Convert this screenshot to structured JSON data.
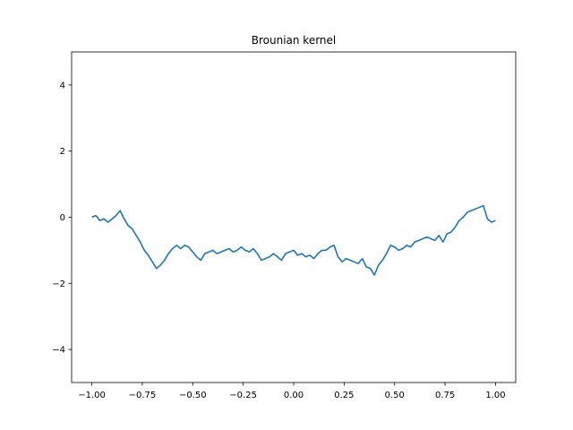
{
  "chart_data": {
    "type": "line",
    "title": "Brounian kernel",
    "xlabel": "",
    "ylabel": "",
    "xlim": [
      -1.1,
      1.1
    ],
    "ylim": [
      -5,
      5
    ],
    "xticks": [
      -1.0,
      -0.75,
      -0.5,
      -0.25,
      0.0,
      0.25,
      0.5,
      0.75,
      1.0
    ],
    "xtick_labels": [
      "−1.00",
      "−0.75",
      "−0.50",
      "−0.25",
      "0.00",
      "0.25",
      "0.50",
      "0.75",
      "1.00"
    ],
    "yticks": [
      -4,
      -2,
      0,
      2,
      4
    ],
    "ytick_labels": [
      "−4",
      "−2",
      "0",
      "2",
      "4"
    ],
    "grid": false,
    "series": [
      {
        "color": "#1f77b4",
        "x": [
          -1.0,
          -0.98,
          -0.96,
          -0.94,
          -0.92,
          -0.9,
          -0.88,
          -0.86,
          -0.84,
          -0.82,
          -0.8,
          -0.78,
          -0.76,
          -0.74,
          -0.72,
          -0.7,
          -0.68,
          -0.66,
          -0.64,
          -0.62,
          -0.6,
          -0.58,
          -0.56,
          -0.54,
          -0.52,
          -0.5,
          -0.48,
          -0.46,
          -0.44,
          -0.42,
          -0.4,
          -0.38,
          -0.36,
          -0.34,
          -0.32,
          -0.3,
          -0.28,
          -0.26,
          -0.24,
          -0.22,
          -0.2,
          -0.18,
          -0.16,
          -0.14,
          -0.12,
          -0.1,
          -0.08,
          -0.06,
          -0.04,
          -0.02,
          0.0,
          0.02,
          0.04,
          0.06,
          0.08,
          0.1,
          0.12,
          0.14,
          0.16,
          0.18,
          0.2,
          0.22,
          0.24,
          0.26,
          0.28,
          0.3,
          0.32,
          0.34,
          0.36,
          0.38,
          0.4,
          0.42,
          0.44,
          0.46,
          0.48,
          0.5,
          0.52,
          0.54,
          0.56,
          0.58,
          0.6,
          0.62,
          0.64,
          0.66,
          0.68,
          0.7,
          0.72,
          0.74,
          0.76,
          0.78,
          0.8,
          0.82,
          0.84,
          0.86,
          0.88,
          0.9,
          0.92,
          0.94,
          0.96,
          0.98,
          1.0
        ],
        "y": [
          0.0,
          0.05,
          -0.1,
          -0.05,
          -0.15,
          -0.05,
          0.05,
          0.2,
          -0.05,
          -0.25,
          -0.35,
          -0.55,
          -0.75,
          -1.0,
          -1.15,
          -1.35,
          -1.55,
          -1.45,
          -1.3,
          -1.1,
          -0.95,
          -0.85,
          -0.95,
          -0.85,
          -0.9,
          -1.05,
          -1.2,
          -1.3,
          -1.1,
          -1.05,
          -1.0,
          -1.1,
          -1.05,
          -1.0,
          -0.95,
          -1.05,
          -1.0,
          -0.9,
          -1.0,
          -1.05,
          -0.95,
          -1.1,
          -1.3,
          -1.25,
          -1.2,
          -1.1,
          -1.2,
          -1.3,
          -1.1,
          -1.05,
          -1.0,
          -1.15,
          -1.1,
          -1.2,
          -1.15,
          -1.25,
          -1.1,
          -1.0,
          -1.0,
          -0.9,
          -0.85,
          -1.2,
          -1.35,
          -1.25,
          -1.3,
          -1.35,
          -1.4,
          -1.25,
          -1.5,
          -1.55,
          -1.75,
          -1.45,
          -1.3,
          -1.1,
          -0.85,
          -0.9,
          -1.0,
          -0.95,
          -0.85,
          -0.9,
          -0.75,
          -0.7,
          -0.65,
          -0.6,
          -0.65,
          -0.7,
          -0.55,
          -0.75,
          -0.5,
          -0.45,
          -0.3,
          -0.1,
          0.0,
          0.15,
          0.2,
          0.25,
          0.3,
          0.35,
          -0.05,
          -0.15,
          -0.1
        ]
      }
    ]
  }
}
